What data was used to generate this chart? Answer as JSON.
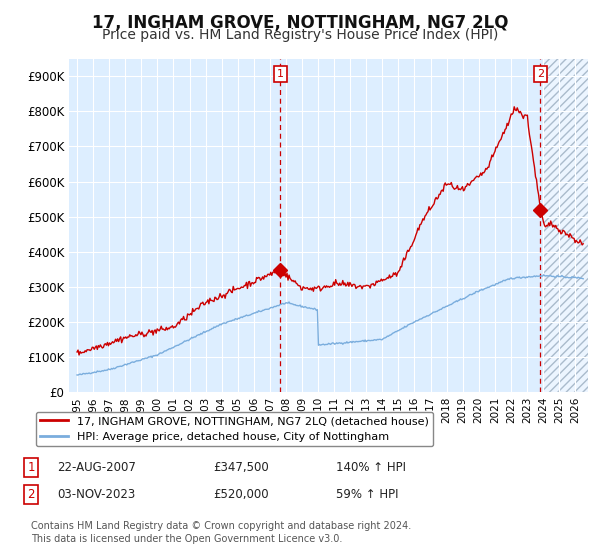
{
  "title": "17, INGHAM GROVE, NOTTINGHAM, NG7 2LQ",
  "subtitle": "Price paid vs. HM Land Registry's House Price Index (HPI)",
  "title_fontsize": 12,
  "subtitle_fontsize": 10,
  "background_color": "#ffffff",
  "plot_bg_color": "#ddeeff",
  "grid_color": "#ffffff",
  "red_line_color": "#cc0000",
  "blue_line_color": "#7aaddd",
  "marker_color": "#cc0000",
  "ylim": [
    0,
    950000
  ],
  "yticks": [
    0,
    100000,
    200000,
    300000,
    400000,
    500000,
    600000,
    700000,
    800000,
    900000
  ],
  "ytick_labels": [
    "£0",
    "£100K",
    "£200K",
    "£300K",
    "£400K",
    "£500K",
    "£600K",
    "£700K",
    "£800K",
    "£900K"
  ],
  "xmin": 1994.5,
  "xmax": 2026.8,
  "sale1_x": 2007.65,
  "sale1_y": 347500,
  "sale1_label": "1",
  "sale2_x": 2023.84,
  "sale2_y": 520000,
  "sale2_label": "2",
  "hatch_start": 2024.0,
  "legend_line1": "17, INGHAM GROVE, NOTTINGHAM, NG7 2LQ (detached house)",
  "legend_line2": "HPI: Average price, detached house, City of Nottingham",
  "annotation1_date": "22-AUG-2007",
  "annotation1_price": "£347,500",
  "annotation1_hpi": "140% ↑ HPI",
  "annotation2_date": "03-NOV-2023",
  "annotation2_price": "£520,000",
  "annotation2_hpi": "59% ↑ HPI",
  "footnote1": "Contains HM Land Registry data © Crown copyright and database right 2024.",
  "footnote2": "This data is licensed under the Open Government Licence v3.0."
}
